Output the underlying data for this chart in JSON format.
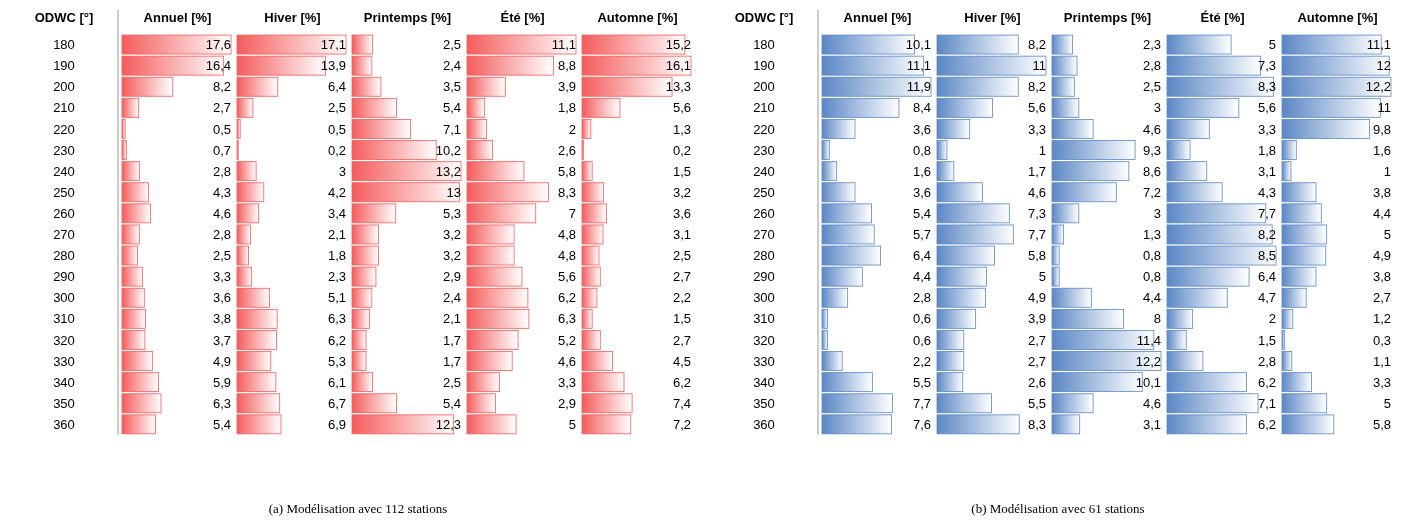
{
  "chart_data": [
    {
      "type": "bar",
      "orientation": "horizontal",
      "title": "Annuel [%]",
      "ylabel": "ODWC [°]",
      "annotations": [
        "(a) Modélisation avec 112 stations"
      ],
      "categories": [
        "180",
        "190",
        "200",
        "210",
        "220",
        "230",
        "240",
        "250",
        "260",
        "270",
        "280",
        "290",
        "300",
        "310",
        "320",
        "330",
        "340",
        "350",
        "360"
      ],
      "color": "#f45c5c",
      "values": [
        17.6,
        16.4,
        8.2,
        2.7,
        0.5,
        0.7,
        2.8,
        4.3,
        4.6,
        2.8,
        2.5,
        3.3,
        3.6,
        3.8,
        3.7,
        4.9,
        5.9,
        6.3,
        5.4
      ],
      "value_labels": [
        "17,6",
        "16,4",
        "8,2",
        "2,7",
        "0,5",
        "0,7",
        "2,8",
        "4,3",
        "4,6",
        "2,8",
        "2,5",
        "3,3",
        "3,6",
        "3,8",
        "3,7",
        "4,9",
        "5,9",
        "6,3",
        "5,4"
      ]
    },
    {
      "type": "bar",
      "orientation": "horizontal",
      "title": "Hiver [%]",
      "categories": [
        "180",
        "190",
        "200",
        "210",
        "220",
        "230",
        "240",
        "250",
        "260",
        "270",
        "280",
        "290",
        "300",
        "310",
        "320",
        "330",
        "340",
        "350",
        "360"
      ],
      "color": "#f45c5c",
      "tick_labels": false,
      "values": [
        17.1,
        13.9,
        6.4,
        2.5,
        0.5,
        0.2,
        3,
        4.2,
        3.4,
        2.1,
        1.8,
        2.3,
        5.1,
        6.3,
        6.2,
        5.3,
        6.1,
        6.7,
        6.9
      ],
      "value_labels": [
        "17,1",
        "13,9",
        "6,4",
        "2,5",
        "0,5",
        "0,2",
        "3",
        "4,2",
        "3,4",
        "2,1",
        "1,8",
        "2,3",
        "5,1",
        "6,3",
        "6,2",
        "5,3",
        "6,1",
        "6,7",
        "6,9"
      ]
    },
    {
      "type": "bar",
      "orientation": "horizontal",
      "title": "Printemps [%]",
      "categories": [
        "180",
        "190",
        "200",
        "210",
        "220",
        "230",
        "240",
        "250",
        "260",
        "270",
        "280",
        "290",
        "300",
        "310",
        "320",
        "330",
        "340",
        "350",
        "360"
      ],
      "color": "#f45c5c",
      "tick_labels": false,
      "values": [
        2.5,
        2.4,
        3.5,
        5.4,
        7.1,
        10.2,
        13.2,
        13,
        5.3,
        3.2,
        3.2,
        2.9,
        2.4,
        2.1,
        1.7,
        1.7,
        2.5,
        5.4,
        12.3
      ],
      "value_labels": [
        "2,5",
        "2,4",
        "3,5",
        "5,4",
        "7,1",
        "10,2",
        "13,2",
        "13",
        "5,3",
        "3,2",
        "3,2",
        "2,9",
        "2,4",
        "2,1",
        "1,7",
        "1,7",
        "2,5",
        "5,4",
        "12,3"
      ]
    },
    {
      "type": "bar",
      "orientation": "horizontal",
      "title": "Été [%]",
      "categories": [
        "180",
        "190",
        "200",
        "210",
        "220",
        "230",
        "240",
        "250",
        "260",
        "270",
        "280",
        "290",
        "300",
        "310",
        "320",
        "330",
        "340",
        "350",
        "360"
      ],
      "color": "#f45c5c",
      "tick_labels": false,
      "values": [
        11.1,
        8.8,
        3.9,
        1.8,
        2,
        2.6,
        5.8,
        8.3,
        7,
        4.8,
        4.8,
        5.6,
        6.2,
        6.3,
        5.2,
        4.6,
        3.3,
        2.9,
        5
      ],
      "value_labels": [
        "11,1",
        "8,8",
        "3,9",
        "1,8",
        "2",
        "2,6",
        "5,8",
        "8,3",
        "7",
        "4,8",
        "4,8",
        "5,6",
        "6,2",
        "6,3",
        "5,2",
        "4,6",
        "3,3",
        "2,9",
        "5"
      ]
    },
    {
      "type": "bar",
      "orientation": "horizontal",
      "title": "Automne [%]",
      "categories": [
        "180",
        "190",
        "200",
        "210",
        "220",
        "230",
        "240",
        "250",
        "260",
        "270",
        "280",
        "290",
        "300",
        "310",
        "320",
        "330",
        "340",
        "350",
        "360"
      ],
      "color": "#f45c5c",
      "tick_labels": false,
      "values": [
        15.2,
        16.1,
        13.3,
        5.6,
        1.3,
        0.2,
        1.5,
        3.2,
        3.6,
        3.1,
        2.5,
        2.7,
        2.2,
        1.5,
        2.7,
        4.5,
        6.2,
        7.4,
        7.2
      ],
      "value_labels": [
        "15,2",
        "16,1",
        "13,3",
        "5,6",
        "1,3",
        "0,2",
        "1,5",
        "3,2",
        "3,6",
        "3,1",
        "2,5",
        "2,7",
        "2,2",
        "1,5",
        "2,7",
        "4,5",
        "6,2",
        "7,4",
        "7,2"
      ]
    },
    {
      "type": "bar",
      "orientation": "horizontal",
      "title": "Annuel [%]",
      "ylabel": "ODWC [°]",
      "annotations": [
        "(b) Modélisation avec 61 stations"
      ],
      "categories": [
        "180",
        "190",
        "200",
        "210",
        "220",
        "230",
        "240",
        "250",
        "260",
        "270",
        "280",
        "290",
        "300",
        "310",
        "320",
        "330",
        "340",
        "350",
        "360"
      ],
      "color": "#5b87c5",
      "values": [
        10.1,
        11.1,
        11.9,
        8.4,
        3.6,
        0.8,
        1.6,
        3.6,
        5.4,
        5.7,
        6.4,
        4.4,
        2.8,
        0.6,
        0.6,
        2.2,
        5.5,
        7.7,
        7.6
      ],
      "value_labels": [
        "10,1",
        "11,1",
        "11,9",
        "8,4",
        "3,6",
        "0,8",
        "1,6",
        "3,6",
        "5,4",
        "5,7",
        "6,4",
        "4,4",
        "2,8",
        "0,6",
        "0,6",
        "2,2",
        "5,5",
        "7,7",
        "7,6"
      ]
    },
    {
      "type": "bar",
      "orientation": "horizontal",
      "title": "Hiver [%]",
      "categories": [
        "180",
        "190",
        "200",
        "210",
        "220",
        "230",
        "240",
        "250",
        "260",
        "270",
        "280",
        "290",
        "300",
        "310",
        "320",
        "330",
        "340",
        "350",
        "360"
      ],
      "color": "#5b87c5",
      "tick_labels": false,
      "values": [
        8.2,
        11,
        8.2,
        5.6,
        3.3,
        1,
        1.7,
        4.6,
        7.3,
        7.7,
        5.8,
        5,
        4.9,
        3.9,
        2.7,
        2.7,
        2.6,
        5.5,
        8.3
      ],
      "value_labels": [
        "8,2",
        "11",
        "8,2",
        "5,6",
        "3,3",
        "1",
        "1,7",
        "4,6",
        "7,3",
        "7,7",
        "5,8",
        "5",
        "4,9",
        "3,9",
        "2,7",
        "2,7",
        "2,6",
        "5,5",
        "8,3"
      ]
    },
    {
      "type": "bar",
      "orientation": "horizontal",
      "title": "Printemps [%]",
      "categories": [
        "180",
        "190",
        "200",
        "210",
        "220",
        "230",
        "240",
        "250",
        "260",
        "270",
        "280",
        "290",
        "300",
        "310",
        "320",
        "330",
        "340",
        "350",
        "360"
      ],
      "color": "#5b87c5",
      "tick_labels": false,
      "values": [
        2.3,
        2.8,
        2.5,
        3,
        4.6,
        9.3,
        8.6,
        7.2,
        3,
        1.3,
        0.8,
        0.8,
        4.4,
        8,
        11.4,
        12.2,
        10.1,
        4.6,
        3.1
      ],
      "value_labels": [
        "2,3",
        "2,8",
        "2,5",
        "3",
        "4,6",
        "9,3",
        "8,6",
        "7,2",
        "3",
        "1,3",
        "0,8",
        "0,8",
        "4,4",
        "8",
        "11,4",
        "12,2",
        "10,1",
        "4,6",
        "3,1"
      ]
    },
    {
      "type": "bar",
      "orientation": "horizontal",
      "title": "Été [%]",
      "categories": [
        "180",
        "190",
        "200",
        "210",
        "220",
        "230",
        "240",
        "250",
        "260",
        "270",
        "280",
        "290",
        "300",
        "310",
        "320",
        "330",
        "340",
        "350",
        "360"
      ],
      "color": "#5b87c5",
      "tick_labels": false,
      "values": [
        5,
        7.3,
        8.3,
        5.6,
        3.3,
        1.8,
        3.1,
        4.3,
        7.7,
        8.2,
        8.5,
        6.4,
        4.7,
        2,
        1.5,
        2.8,
        6.2,
        7.1,
        6.2
      ],
      "value_labels": [
        "5",
        "7,3",
        "8,3",
        "5,6",
        "3,3",
        "1,8",
        "3,1",
        "4,3",
        "7,7",
        "8,2",
        "8,5",
        "6,4",
        "4,7",
        "2",
        "1,5",
        "2,8",
        "6,2",
        "7,1",
        "6,2"
      ]
    },
    {
      "type": "bar",
      "orientation": "horizontal",
      "title": "Automne [%]",
      "categories": [
        "180",
        "190",
        "200",
        "210",
        "220",
        "230",
        "240",
        "250",
        "260",
        "270",
        "280",
        "290",
        "300",
        "310",
        "320",
        "330",
        "340",
        "350",
        "360"
      ],
      "color": "#5b87c5",
      "tick_labels": false,
      "values": [
        11.1,
        12,
        12.2,
        11,
        9.8,
        1.6,
        1,
        3.8,
        4.4,
        5,
        4.9,
        3.8,
        2.7,
        1.2,
        0.3,
        1.1,
        3.3,
        5,
        5.8
      ],
      "value_labels": [
        "11,1",
        "12",
        "12,2",
        "11",
        "9,8",
        "1,6",
        "1",
        "3,8",
        "4,4",
        "5",
        "4,9",
        "3,8",
        "2,7",
        "1,2",
        "0,3",
        "1,1",
        "3,3",
        "5",
        "5,8"
      ]
    }
  ]
}
